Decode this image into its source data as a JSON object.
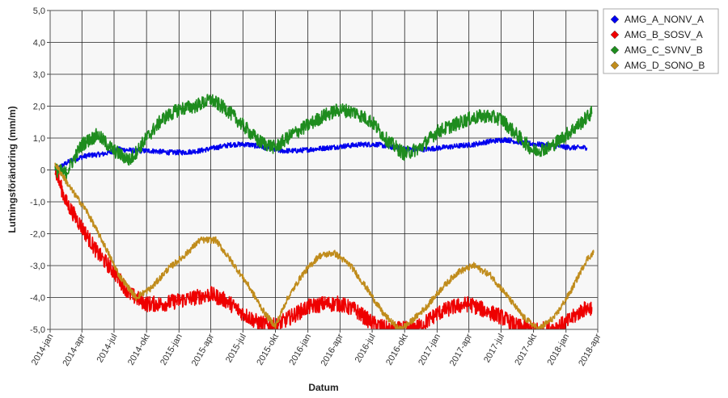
{
  "chart_data": {
    "type": "line",
    "title": "",
    "xlabel": "Datum",
    "ylabel": "Lutningsförändring (mm/m)",
    "x_ticks": [
      "2014-jan",
      "2014-apr",
      "2014-jul",
      "2014-okt",
      "2015-jan",
      "2015-apr",
      "2015-jul",
      "2015-okt",
      "2016-jan",
      "2016-apr",
      "2016-jul",
      "2016-okt",
      "2017-jan",
      "2017-apr",
      "2017-jul",
      "2017-okt",
      "2018-jan",
      "2018-apr"
    ],
    "y_ticks": [
      "5,0",
      "4,0",
      "3,0",
      "2,0",
      "1,0",
      "0",
      "-1,0",
      "-2,0",
      "-3,0",
      "-4,0",
      "-5,0"
    ],
    "ylim": [
      -5,
      5
    ],
    "xlim": [
      "2014-01-01",
      "2018-04-01"
    ],
    "grid": true,
    "legend_position": "right-top",
    "series": [
      {
        "name": "AMG_A_NONV_A",
        "color": "#0000ee",
        "noise": 0.08,
        "x": [
          "2014-01-15",
          "2014-03-01",
          "2014-04-15",
          "2014-06-01",
          "2014-07-15",
          "2014-09-01",
          "2014-10-15",
          "2014-12-01",
          "2015-01-15",
          "2015-03-01",
          "2015-04-15",
          "2015-06-01",
          "2015-07-15",
          "2015-09-01",
          "2015-10-15",
          "2015-12-01",
          "2016-01-15",
          "2016-03-01",
          "2016-04-15",
          "2016-06-01",
          "2016-07-15",
          "2016-09-01",
          "2016-10-15",
          "2016-12-01",
          "2017-01-15",
          "2017-03-01",
          "2017-04-15",
          "2017-06-01",
          "2017-07-15",
          "2017-09-01",
          "2017-10-15",
          "2017-12-01",
          "2018-01-15",
          "2018-03-01"
        ],
        "y": [
          0.0,
          0.3,
          0.45,
          0.5,
          0.65,
          0.6,
          0.6,
          0.55,
          0.55,
          0.6,
          0.7,
          0.8,
          0.8,
          0.7,
          0.6,
          0.6,
          0.65,
          0.7,
          0.75,
          0.8,
          0.8,
          0.7,
          0.65,
          0.65,
          0.7,
          0.75,
          0.8,
          0.9,
          0.95,
          0.85,
          0.8,
          0.75,
          0.7,
          0.7
        ]
      },
      {
        "name": "AMG_B_SOSV_A",
        "color": "#ee0000",
        "noise": 0.25,
        "x": [
          "2014-01-15",
          "2014-02-15",
          "2014-04-01",
          "2014-05-15",
          "2014-07-01",
          "2014-08-15",
          "2014-10-01",
          "2014-11-15",
          "2015-01-01",
          "2015-02-15",
          "2015-04-01",
          "2015-05-15",
          "2015-07-01",
          "2015-08-15",
          "2015-10-01",
          "2015-11-15",
          "2016-01-01",
          "2016-02-15",
          "2016-04-01",
          "2016-05-15",
          "2016-07-01",
          "2016-08-15",
          "2016-10-01",
          "2016-11-15",
          "2017-01-01",
          "2017-02-15",
          "2017-04-01",
          "2017-05-15",
          "2017-07-01",
          "2017-08-15",
          "2017-10-01",
          "2017-11-15",
          "2018-01-01",
          "2018-02-15",
          "2018-03-15"
        ],
        "y": [
          0.0,
          -1.0,
          -1.8,
          -2.6,
          -3.2,
          -3.9,
          -4.2,
          -4.2,
          -4.1,
          -4.0,
          -3.9,
          -4.1,
          -4.5,
          -4.8,
          -4.9,
          -4.6,
          -4.3,
          -4.2,
          -4.2,
          -4.4,
          -4.8,
          -5.0,
          -5.0,
          -4.9,
          -4.5,
          -4.3,
          -4.2,
          -4.4,
          -4.6,
          -4.9,
          -5.0,
          -5.0,
          -4.8,
          -4.4,
          -4.3
        ]
      },
      {
        "name": "AMG_C_SVNV_B",
        "color": "#1e8c1e",
        "noise": 0.22,
        "x": [
          "2014-01-15",
          "2014-02-15",
          "2014-04-01",
          "2014-05-15",
          "2014-07-01",
          "2014-08-15",
          "2014-10-01",
          "2014-11-15",
          "2015-01-01",
          "2015-02-15",
          "2015-04-01",
          "2015-05-15",
          "2015-07-01",
          "2015-08-15",
          "2015-10-01",
          "2015-11-15",
          "2016-01-01",
          "2016-02-15",
          "2016-04-01",
          "2016-05-15",
          "2016-07-01",
          "2016-08-15",
          "2016-10-01",
          "2016-11-15",
          "2017-01-01",
          "2017-02-15",
          "2017-04-01",
          "2017-05-15",
          "2017-07-01",
          "2017-08-15",
          "2017-10-01",
          "2017-11-15",
          "2018-01-01",
          "2018-02-15",
          "2018-03-15"
        ],
        "y": [
          0.0,
          -0.1,
          0.8,
          1.1,
          0.6,
          0.3,
          1.0,
          1.6,
          1.9,
          2.0,
          2.2,
          1.9,
          1.4,
          0.9,
          0.7,
          1.1,
          1.4,
          1.7,
          1.9,
          1.8,
          1.5,
          0.9,
          0.5,
          0.7,
          1.2,
          1.4,
          1.6,
          1.7,
          1.6,
          1.1,
          0.6,
          0.7,
          1.1,
          1.5,
          1.8
        ]
      },
      {
        "name": "AMG_D_SONO_B",
        "color": "#c08c1c",
        "noise": 0.1,
        "x": [
          "2014-01-15",
          "2014-02-01",
          "2014-03-01",
          "2014-04-15",
          "2014-06-01",
          "2014-07-15",
          "2014-09-01",
          "2014-10-15",
          "2014-12-01",
          "2015-01-15",
          "2015-03-01",
          "2015-04-15",
          "2015-06-01",
          "2015-07-15",
          "2015-09-01",
          "2015-10-01",
          "2015-11-01",
          "2015-12-15",
          "2016-02-01",
          "2016-03-15",
          "2016-05-01",
          "2016-06-15",
          "2016-08-01",
          "2016-09-15",
          "2016-10-15",
          "2016-12-01",
          "2017-01-15",
          "2017-03-01",
          "2017-04-15",
          "2017-06-01",
          "2017-07-15",
          "2017-09-01",
          "2017-10-15",
          "2017-12-01",
          "2018-01-15",
          "2018-03-01",
          "2018-03-20"
        ],
        "y": [
          0.2,
          -0.1,
          -0.6,
          -1.3,
          -2.3,
          -3.3,
          -4.0,
          -3.7,
          -3.1,
          -2.7,
          -2.2,
          -2.2,
          -2.9,
          -3.6,
          -4.5,
          -4.9,
          -4.1,
          -3.3,
          -2.7,
          -2.6,
          -3.0,
          -3.7,
          -4.5,
          -5.0,
          -4.8,
          -4.3,
          -3.7,
          -3.2,
          -3.0,
          -3.3,
          -3.9,
          -4.6,
          -5.0,
          -4.6,
          -3.8,
          -2.8,
          -2.6
        ]
      }
    ]
  }
}
